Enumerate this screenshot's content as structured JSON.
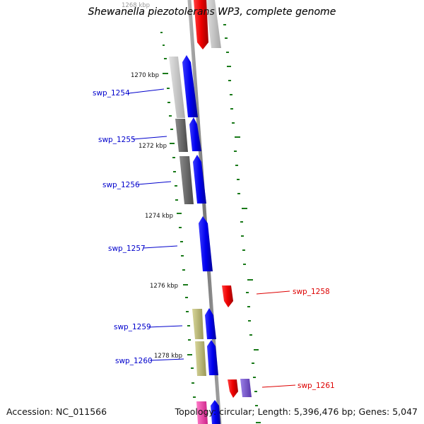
{
  "title": "Shewanella piezotolerans WP3, complete genome",
  "accession_text": "Accession: NC_011566",
  "topology_text": "Topology: circular; Length: 5,396,476 bp; Genes: 5,047",
  "scale_labels": [
    "1268 kbp",
    "1270 kbp",
    "1272 kbp",
    "1274 kbp",
    "1276 kbp",
    "1278 kbp"
  ],
  "genes": [
    {
      "name": "swp_1254",
      "strand": "forward",
      "label_color": "#0000cc"
    },
    {
      "name": "swp_1255",
      "strand": "forward",
      "label_color": "#0000cc"
    },
    {
      "name": "swp_1256",
      "strand": "forward",
      "label_color": "#0000cc"
    },
    {
      "name": "swp_1257",
      "strand": "forward",
      "label_color": "#0000cc"
    },
    {
      "name": "swp_1258",
      "strand": "reverse",
      "label_color": "#dd0000"
    },
    {
      "name": "swp_1259",
      "strand": "forward",
      "label_color": "#0000cc"
    },
    {
      "name": "swp_1260",
      "strand": "forward",
      "label_color": "#0000cc"
    },
    {
      "name": "swp_1261",
      "strand": "reverse",
      "label_color": "#dd0000"
    }
  ],
  "colors": {
    "forward_cds": "#0000ee",
    "reverse_cds": "#ee0000",
    "backbone": "#8a8a8a",
    "tick": "#1a7a1a",
    "cog_light": "#c8c8c8",
    "cog_dark": "#707070",
    "cog_olive": "#bdbb7a",
    "cog_purple": "#7a55cc",
    "cog_magenta": "#ee44aa"
  }
}
